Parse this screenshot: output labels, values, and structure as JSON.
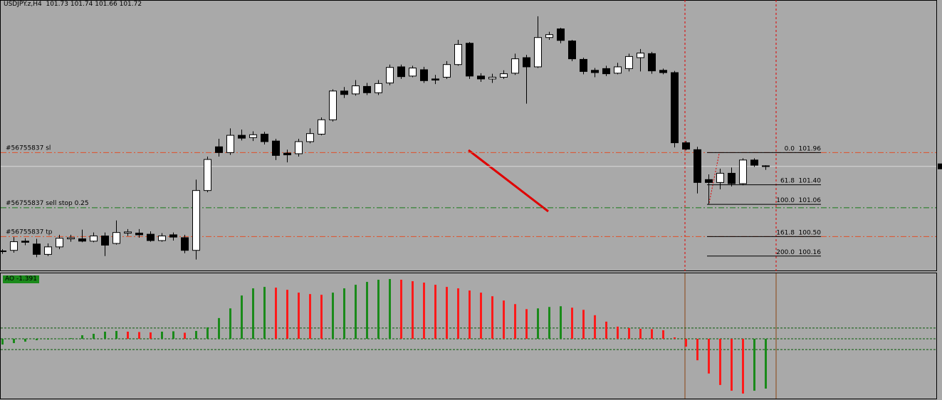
{
  "chart_data": [
    {
      "type": "candlestick",
      "title": "USDJPY.z,H4",
      "open": [
        100.24,
        100.26,
        100.42,
        100.37,
        100.19,
        100.32,
        100.46,
        100.46,
        100.42,
        100.51,
        100.38,
        100.56,
        100.56,
        100.54,
        100.43,
        100.53,
        100.48,
        100.26,
        101.3,
        102.06,
        101.96,
        102.26,
        102.22,
        102.28,
        102.16,
        101.95,
        101.94,
        102.15,
        102.28,
        102.53,
        103.03,
        102.98,
        103.11,
        103.0,
        103.17,
        103.45,
        103.29,
        103.4,
        103.24,
        103.27,
        103.49,
        103.86,
        103.29,
        103.24,
        103.27,
        103.34,
        103.61,
        103.45,
        103.96,
        104.11,
        103.9,
        103.58,
        103.39,
        103.42,
        103.34,
        103.42,
        103.61,
        103.68,
        103.39,
        103.35,
        102.13,
        102.01,
        101.49,
        101.44,
        101.6,
        101.42,
        101.83,
        101.73
      ],
      "high": [
        100.28,
        100.49,
        100.47,
        100.46,
        100.38,
        100.53,
        100.53,
        100.62,
        100.57,
        100.57,
        100.78,
        100.63,
        100.63,
        100.59,
        100.56,
        100.57,
        100.53,
        101.49,
        101.89,
        102.2,
        102.38,
        102.36,
        102.33,
        102.32,
        102.2,
        102.01,
        102.2,
        102.38,
        102.57,
        103.06,
        103.1,
        103.22,
        103.17,
        103.22,
        103.49,
        103.49,
        103.47,
        103.45,
        103.31,
        103.55,
        103.92,
        103.88,
        103.34,
        103.33,
        103.39,
        103.68,
        103.66,
        104.33,
        104.06,
        104.13,
        103.92,
        103.61,
        103.43,
        103.47,
        103.52,
        103.68,
        103.76,
        103.71,
        103.42,
        103.38,
        102.16,
        102.06,
        101.58,
        101.68,
        101.7,
        101.86,
        101.86,
        101.74
      ],
      "low": [
        100.2,
        100.22,
        100.35,
        100.14,
        100.16,
        100.28,
        100.41,
        100.4,
        100.4,
        100.16,
        100.36,
        100.51,
        100.48,
        100.41,
        100.41,
        100.43,
        100.21,
        100.1,
        101.27,
        101.89,
        101.92,
        102.17,
        102.16,
        102.1,
        101.83,
        101.79,
        101.89,
        102.12,
        102.26,
        102.5,
        102.91,
        102.95,
        102.96,
        102.96,
        103.13,
        103.24,
        103.27,
        103.17,
        103.15,
        103.24,
        103.47,
        103.24,
        103.19,
        103.17,
        103.24,
        103.31,
        102.81,
        103.43,
        103.92,
        103.86,
        103.55,
        103.32,
        103.27,
        103.29,
        103.32,
        103.37,
        103.37,
        103.33,
        103.32,
        102.05,
        102.0,
        101.25,
        101.06,
        101.32,
        101.37,
        101.39,
        101.71,
        101.66
      ],
      "close": [
        100.25,
        100.41,
        100.4,
        100.19,
        100.32,
        100.47,
        100.48,
        100.42,
        100.51,
        100.35,
        100.57,
        100.58,
        100.53,
        100.43,
        100.51,
        100.49,
        100.26,
        101.3,
        101.84,
        101.96,
        102.26,
        102.21,
        102.27,
        102.15,
        101.91,
        101.92,
        102.15,
        102.29,
        102.53,
        103.03,
        102.97,
        103.12,
        103.0,
        103.16,
        103.44,
        103.28,
        103.43,
        103.21,
        103.22,
        103.49,
        103.84,
        103.29,
        103.24,
        103.27,
        103.33,
        103.59,
        103.45,
        103.96,
        104.01,
        103.91,
        103.59,
        103.37,
        103.35,
        103.33,
        103.45,
        103.63,
        103.69,
        103.38,
        103.35,
        102.13,
        102.02,
        101.44,
        101.44,
        101.6,
        101.42,
        101.83,
        101.74,
        101.72
      ],
      "up_color": "#ffffff",
      "down_color": "#000000",
      "wick_color": "#000000",
      "price_line_color": "#d8d8d8",
      "ylim": [
        99.91,
        104.6
      ],
      "orders": [
        {
          "label": "#56755837 sl",
          "price": 101.96,
          "color": "#e0502a"
        },
        {
          "label": "#56755837 sell stop 0.25",
          "price": 101.0,
          "color": "#1a7a1a"
        },
        {
          "label": "#56755837 tp",
          "price": 100.5,
          "color": "#e0502a"
        }
      ],
      "fibonacci": {
        "color": "#000000",
        "levels": [
          {
            "ratio": "0.0",
            "price": 101.96
          },
          {
            "ratio": "61.8",
            "price": {
              "value": 101.4,
              "label": "101.40"
            }
          },
          {
            "ratio": "100.0",
            "price": 101.06
          },
          {
            "ratio": "161.8",
            "price": {
              "value": 100.5,
              "label": "100.50"
            }
          },
          {
            "ratio": "200.0",
            "price": 100.16
          }
        ]
      }
    },
    {
      "type": "bar",
      "name": "AO",
      "values": [
        -0.16,
        -0.12,
        -0.08,
        -0.04,
        -0.02,
        0.01,
        0.02,
        0.1,
        0.14,
        0.2,
        0.22,
        0.2,
        0.19,
        0.18,
        0.2,
        0.21,
        0.17,
        0.22,
        0.32,
        0.58,
        0.85,
        1.21,
        1.41,
        1.45,
        1.43,
        1.37,
        1.29,
        1.25,
        1.23,
        1.29,
        1.41,
        1.51,
        1.59,
        1.65,
        1.67,
        1.65,
        1.61,
        1.57,
        1.51,
        1.45,
        1.41,
        1.35,
        1.29,
        1.19,
        1.07,
        0.97,
        0.83,
        0.85,
        0.89,
        0.91,
        0.87,
        0.81,
        0.66,
        0.48,
        0.34,
        0.3,
        0.28,
        0.27,
        0.24,
        0.04,
        -0.22,
        -0.6,
        -0.97,
        -1.29,
        -1.45,
        -1.53,
        -1.45,
        -1.391
      ],
      "up_color": "#1a8a1a",
      "down_color": "#ff1a1a",
      "ylim": [
        -1.67,
        1.81
      ],
      "levels": [
        0.3,
        0,
        -0.3
      ],
      "level_color": "#0a5a0a"
    }
  ]
}
